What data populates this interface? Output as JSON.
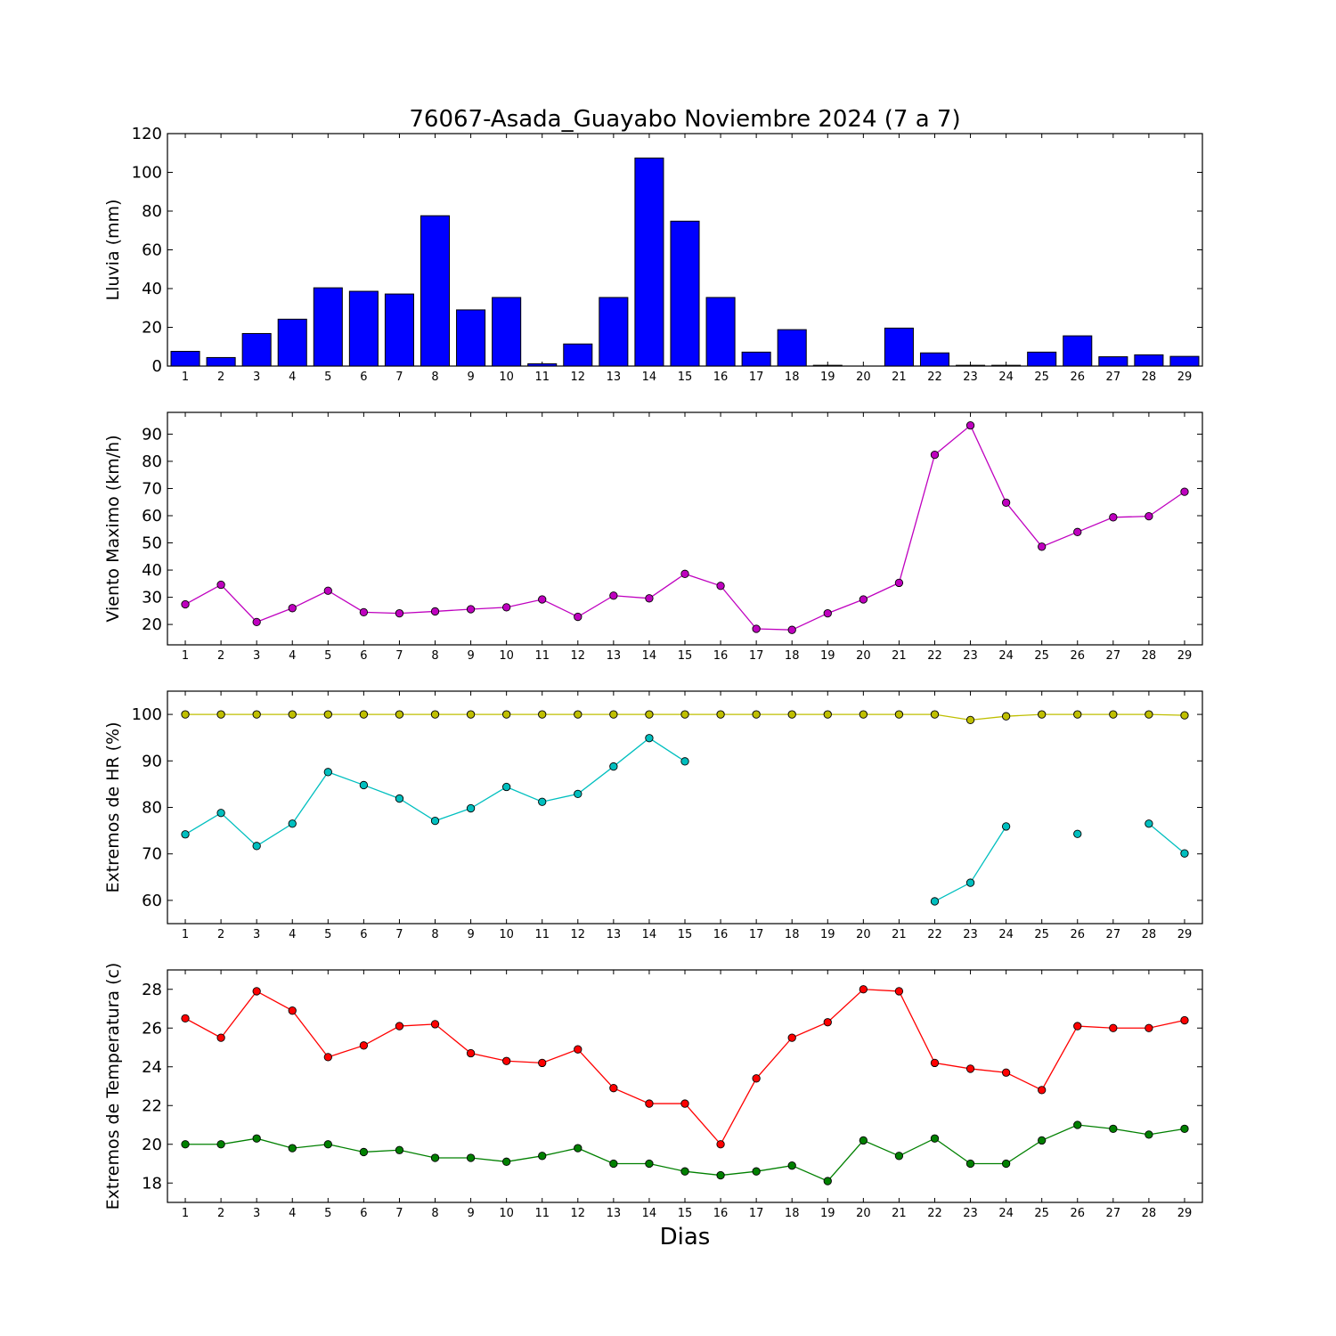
{
  "figure": {
    "title": "76067-Asada_Guayabo Noviembre 2024  (7 a 7)",
    "xlabel": "Dias"
  },
  "chart_data": [
    {
      "type": "bar",
      "ylabel": "Lluvia (mm)",
      "ylim": [
        0,
        120
      ],
      "yticks": [
        0,
        20,
        40,
        60,
        80,
        100,
        120
      ],
      "xlim": [
        0.5,
        29.5
      ],
      "categories": [
        1,
        2,
        3,
        4,
        5,
        6,
        7,
        8,
        9,
        10,
        11,
        12,
        13,
        14,
        15,
        16,
        17,
        18,
        19,
        20,
        21,
        22,
        23,
        24,
        25,
        26,
        27,
        28,
        29
      ],
      "series": [
        {
          "color": "#0000ff",
          "values": [
            7.6,
            4.4,
            16.8,
            24.2,
            40.4,
            38.6,
            37.2,
            77.6,
            29.0,
            35.4,
            1.2,
            11.4,
            35.4,
            107.4,
            74.8,
            35.4,
            7.2,
            18.8,
            0.4,
            0.0,
            19.6,
            6.8,
            0.4,
            0.4,
            7.2,
            15.6,
            4.8,
            5.8,
            5.0
          ]
        }
      ]
    },
    {
      "type": "line",
      "ylabel": "Viento Maximo (km/h)",
      "ylim": [
        12.5,
        98
      ],
      "yticks": [
        20,
        30,
        40,
        50,
        60,
        70,
        80,
        90
      ],
      "xlim": [
        0.5,
        29.5
      ],
      "x": [
        1,
        2,
        3,
        4,
        5,
        6,
        7,
        8,
        9,
        10,
        11,
        12,
        13,
        14,
        15,
        16,
        17,
        18,
        19,
        20,
        21,
        22,
        23,
        24,
        25,
        26,
        27,
        28,
        29
      ],
      "series": [
        {
          "color": "#bf00bf",
          "values": [
            27.4,
            34.6,
            20.9,
            26.0,
            32.4,
            24.5,
            24.1,
            24.8,
            25.6,
            26.3,
            29.2,
            22.8,
            30.6,
            29.6,
            38.6,
            34.2,
            18.4,
            18.0,
            24.1,
            29.2,
            35.3,
            82.4,
            93.2,
            64.8,
            48.6,
            54.0,
            59.4,
            59.8,
            68.8
          ]
        }
      ]
    },
    {
      "type": "line",
      "ylabel": "Extremos de HR (%)",
      "ylim": [
        55,
        105
      ],
      "yticks": [
        60,
        70,
        80,
        90,
        100
      ],
      "xlim": [
        0.5,
        29.5
      ],
      "x": [
        1,
        2,
        3,
        4,
        5,
        6,
        7,
        8,
        9,
        10,
        11,
        12,
        13,
        14,
        15,
        16,
        17,
        18,
        19,
        20,
        21,
        22,
        23,
        24,
        25,
        26,
        27,
        28,
        29
      ],
      "series": [
        {
          "color": "#bfbf00",
          "values": [
            100,
            100,
            100,
            100,
            100,
            100,
            100,
            100,
            100,
            100,
            100,
            100,
            100,
            100,
            100,
            100,
            100,
            100,
            100,
            100,
            100,
            100,
            98.8,
            99.6,
            100,
            100,
            100,
            100,
            99.8
          ]
        },
        {
          "color": "#00bfbf",
          "values": [
            74.2,
            78.8,
            71.7,
            76.5,
            87.6,
            84.8,
            81.9,
            77.1,
            79.8,
            84.4,
            81.2,
            82.9,
            88.8,
            94.9,
            89.9,
            null,
            null,
            null,
            null,
            null,
            null,
            59.8,
            63.8,
            75.9,
            null,
            74.3,
            null,
            76.5,
            70.1
          ]
        }
      ]
    },
    {
      "type": "line",
      "ylabel": "Extremos de Temperatura (c)",
      "ylim": [
        17,
        29
      ],
      "yticks": [
        18,
        20,
        22,
        24,
        26,
        28
      ],
      "xlim": [
        0.5,
        29.5
      ],
      "x": [
        1,
        2,
        3,
        4,
        5,
        6,
        7,
        8,
        9,
        10,
        11,
        12,
        13,
        14,
        15,
        16,
        17,
        18,
        19,
        20,
        21,
        22,
        23,
        24,
        25,
        26,
        27,
        28,
        29
      ],
      "series": [
        {
          "color": "#ff0000",
          "values": [
            26.5,
            25.5,
            27.9,
            26.9,
            24.5,
            25.1,
            26.1,
            26.2,
            24.7,
            24.3,
            24.2,
            24.9,
            22.9,
            22.1,
            22.1,
            20.0,
            23.4,
            25.5,
            26.3,
            28.0,
            27.9,
            24.2,
            23.9,
            23.7,
            22.8,
            26.1,
            26.0,
            26.0,
            26.4
          ]
        },
        {
          "color": "#008000",
          "values": [
            20.0,
            20.0,
            20.3,
            19.8,
            20.0,
            19.6,
            19.7,
            19.3,
            19.3,
            19.1,
            19.4,
            19.8,
            19.0,
            19.0,
            18.6,
            18.4,
            18.6,
            18.9,
            18.1,
            20.2,
            19.4,
            20.3,
            19.0,
            19.0,
            20.2,
            21.0,
            20.8,
            20.5,
            20.8
          ]
        }
      ]
    }
  ]
}
